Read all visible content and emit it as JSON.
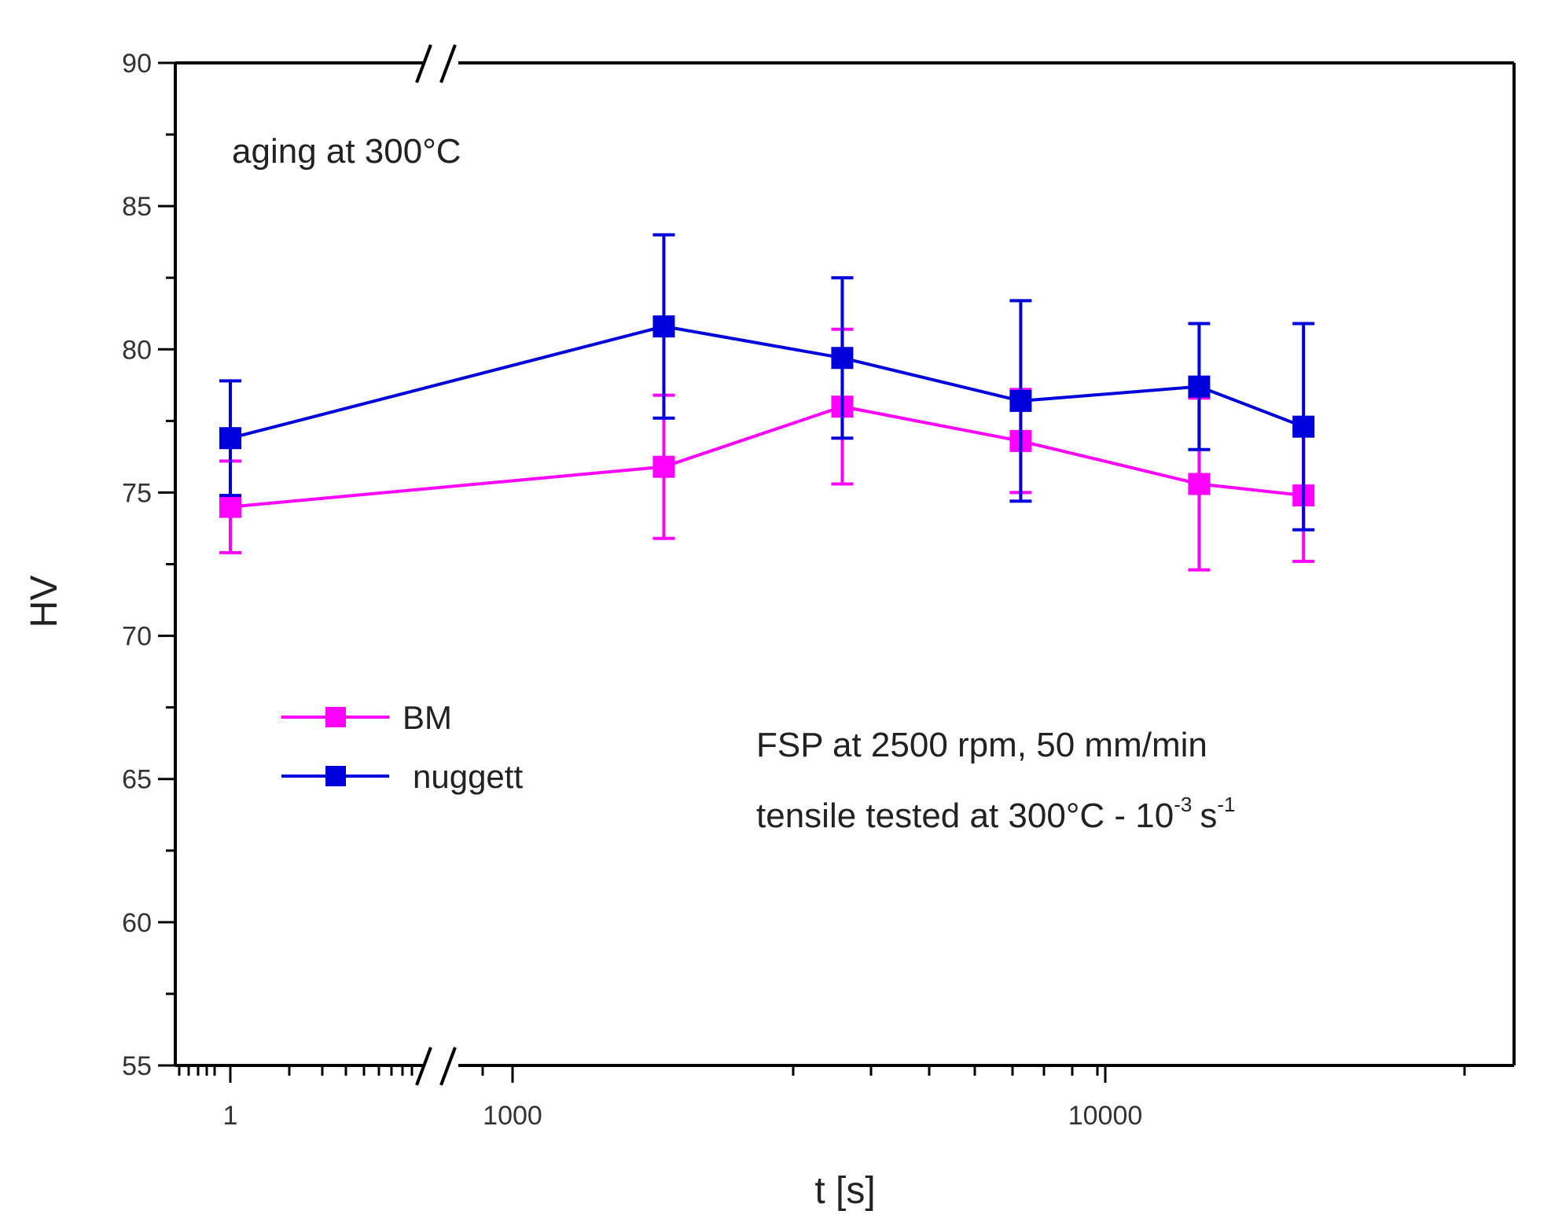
{
  "chart_data": {
    "type": "line",
    "title": "",
    "xlabel": "t [s]",
    "ylabel": "HV",
    "ylim": [
      55,
      90
    ],
    "yticks": [
      55,
      60,
      65,
      70,
      75,
      80,
      85,
      90
    ],
    "yticklabels": [
      "55",
      "60",
      "65",
      "70",
      "75",
      "80",
      "85",
      "90"
    ],
    "xscale": "log (broken axis)",
    "xticklabels": [
      "1",
      "1000",
      "10000"
    ],
    "series": [
      {
        "name": "BM",
        "color": "#ff00ff",
        "marker": "square",
        "x": [
          1,
          1800,
          3600,
          7200,
          14400,
          21600
        ],
        "values": [
          74.5,
          75.9,
          78.0,
          76.8,
          75.3,
          74.9
        ],
        "error": [
          1.6,
          2.5,
          2.7,
          1.8,
          3.0,
          2.3
        ]
      },
      {
        "name": "nuggett",
        "color": "#0000dd",
        "marker": "square",
        "x": [
          1,
          1800,
          3600,
          7200,
          14400,
          21600
        ],
        "values": [
          76.9,
          80.8,
          79.7,
          78.2,
          78.7,
          77.3
        ],
        "error": [
          2.0,
          3.2,
          2.8,
          3.5,
          2.2,
          3.6
        ]
      }
    ],
    "annotations": {
      "aging": "aging at 300°C",
      "fsp": "FSP at 2500 rpm, 50 mm/min",
      "tensile_main": "tensile tested at 300°C - 10",
      "tensile_exp1": "-3",
      "tensile_unit": "s",
      "tensile_exp2": "-1"
    },
    "legend": {
      "placement": "lower-left",
      "entries": [
        "BM",
        "nuggett"
      ]
    }
  }
}
